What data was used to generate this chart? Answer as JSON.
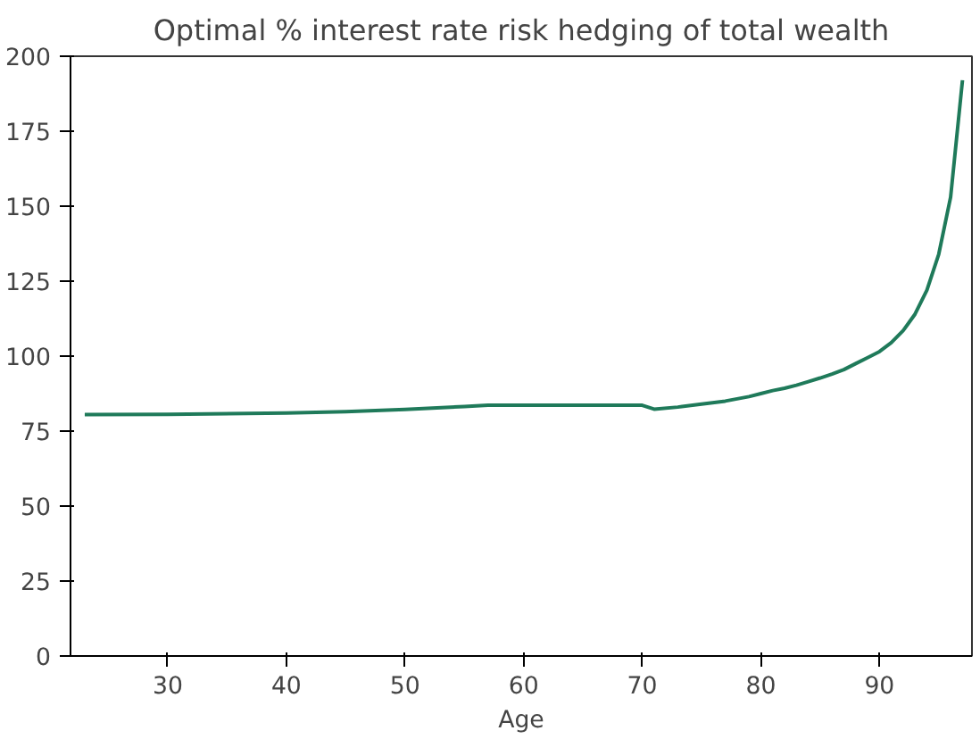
{
  "chart_data": {
    "type": "line",
    "title": "Optimal % interest rate risk hedging of total wealth",
    "xlabel": "Age",
    "x": [
      23,
      30,
      40,
      45,
      50,
      55,
      57,
      60,
      65,
      70,
      71,
      73,
      75,
      77,
      79,
      80,
      81,
      82,
      83,
      84,
      85,
      86,
      87,
      88,
      89,
      90,
      91,
      92,
      93,
      94,
      95,
      96,
      97
    ],
    "series": [
      {
        "color": "#1f7a5a",
        "values": [
          80.5,
          80.6,
          81,
          81.5,
          82.2,
          83.2,
          83.6,
          83.6,
          83.6,
          83.6,
          82.3,
          83,
          84,
          85,
          86.5,
          87.5,
          88.5,
          89.3,
          90.3,
          91.5,
          92.7,
          94,
          95.5,
          97.5,
          99.5,
          101.5,
          104.5,
          108.5,
          114,
          122,
          134,
          153,
          192
        ]
      }
    ],
    "xlim": [
      21.8,
      97.8
    ],
    "ylim": [
      0,
      200
    ],
    "xticks": [
      30,
      40,
      50,
      60,
      70,
      80,
      90
    ],
    "yticks": [
      0,
      25,
      50,
      75,
      100,
      125,
      150,
      175,
      200
    ],
    "line_style": "solid"
  }
}
